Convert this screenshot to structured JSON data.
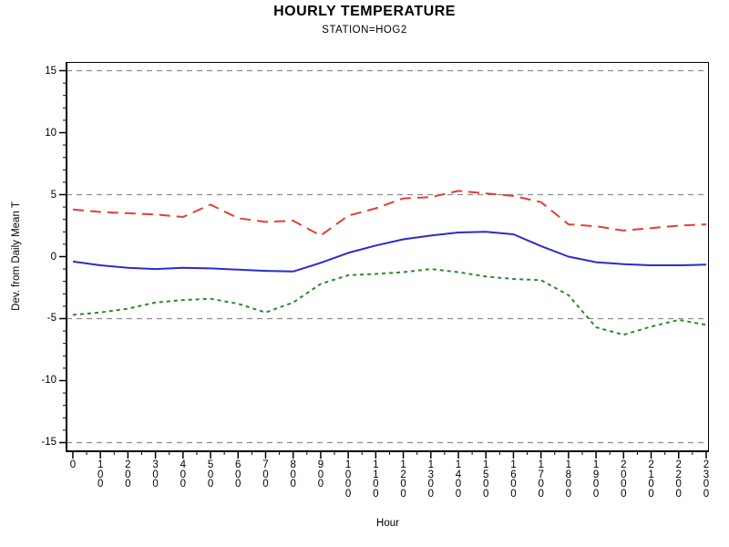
{
  "header": {
    "title": "HOURLY TEMPERATURE",
    "subtitle": "STATION=HOG2"
  },
  "chart_data": {
    "type": "line",
    "title": "HOURLY TEMPERATURE",
    "subtitle": "STATION=HOG2",
    "xlabel": "Hour",
    "ylabel": "Dev. from Daily Mean T",
    "x": [
      0,
      100,
      200,
      300,
      400,
      500,
      600,
      700,
      800,
      900,
      1000,
      1100,
      1200,
      1300,
      1400,
      1500,
      1600,
      1700,
      1800,
      1900,
      2000,
      2100,
      2200,
      2300
    ],
    "x_tick_labels": [
      "0",
      "100",
      "200",
      "300",
      "400",
      "500",
      "600",
      "700",
      "800",
      "900",
      "1000",
      "1100",
      "1200",
      "1300",
      "1400",
      "1500",
      "1600",
      "1700",
      "1800",
      "1900",
      "2000",
      "2100",
      "2200",
      "2300"
    ],
    "y_tick_labels": [
      "15",
      "10",
      "5",
      "0",
      "-5",
      "-10",
      "-15"
    ],
    "y_major_ticks": [
      15,
      10,
      5,
      0,
      -5,
      -10,
      -15
    ],
    "y_minor_step": 1,
    "x_minor_step": 50,
    "grid_values": [
      15,
      5,
      -5,
      -15
    ],
    "grid_color": "#8c8c8c",
    "xlim": [
      -23,
      2310
    ],
    "ylim": [
      -15.7,
      15.7
    ],
    "legend_position": "none",
    "series": [
      {
        "name": "red-long-dash",
        "color": "#e83c34",
        "dash": "12 7",
        "width": 2,
        "values": [
          3.8,
          3.6,
          3.5,
          3.4,
          3.2,
          4.2,
          3.1,
          2.8,
          2.9,
          1.7,
          3.3,
          3.9,
          4.7,
          4.8,
          5.3,
          5.1,
          4.9,
          4.4,
          2.6,
          2.45,
          2.1,
          2.3,
          2.5,
          2.6
        ]
      },
      {
        "name": "blue-solid",
        "color": "#2b2bce",
        "dash": "",
        "width": 2,
        "values": [
          -0.4,
          -0.7,
          -0.9,
          -1.0,
          -0.9,
          -0.95,
          -1.05,
          -1.15,
          -1.2,
          -0.5,
          0.3,
          0.9,
          1.4,
          1.7,
          1.95,
          2.0,
          1.8,
          0.85,
          0.0,
          -0.45,
          -0.6,
          -0.7,
          -0.7,
          -0.65
        ]
      },
      {
        "name": "green-short-dash",
        "color": "#2a8a2a",
        "dash": "4 4",
        "width": 2,
        "values": [
          -4.7,
          -4.5,
          -4.2,
          -3.7,
          -3.5,
          -3.4,
          -3.8,
          -4.5,
          -3.7,
          -2.2,
          -1.5,
          -1.4,
          -1.25,
          -1.0,
          -1.25,
          -1.6,
          -1.8,
          -1.9,
          -3.1,
          -5.7,
          -6.3,
          -5.65,
          -5.1,
          -5.5
        ]
      }
    ]
  }
}
